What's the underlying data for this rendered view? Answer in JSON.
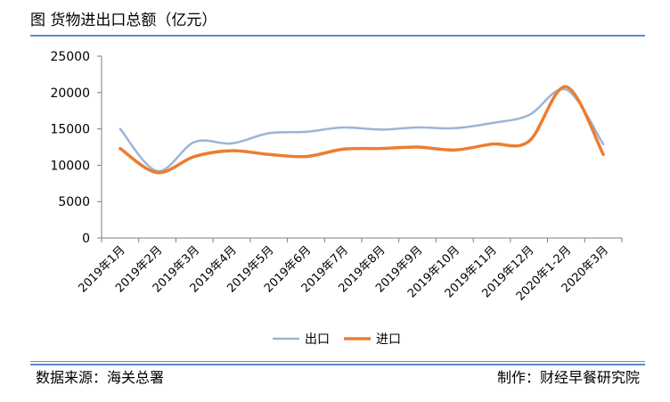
{
  "header": {
    "title": "图 货物进出口总额（亿元）"
  },
  "footer": {
    "source": "数据来源：海关总署",
    "producer": "制作：财经早餐研究院"
  },
  "colors": {
    "rule": "#5b8ec8",
    "export_line": "#9db4d8",
    "import_line": "#ed7d31",
    "axis": "#7f7f7f"
  },
  "chart_data": {
    "type": "line",
    "title": "货物进出口总额（亿元）",
    "xlabel": "",
    "ylabel": "",
    "categories": [
      "2019年1月",
      "2019年2月",
      "2019年3月",
      "2019年4月",
      "2019年5月",
      "2019年6月",
      "2019年7月",
      "2019年8月",
      "2019年9月",
      "2019年10月",
      "2019年11月",
      "2019年12月",
      "2020年1-2月",
      "2020年3月"
    ],
    "ylim": [
      0,
      25000
    ],
    "yticks": [
      0,
      5000,
      10000,
      15000,
      20000,
      25000
    ],
    "grid": false,
    "legend_position": "bottom",
    "smooth": true,
    "series": [
      {
        "name": "出口",
        "color": "#9db4d8",
        "values": [
          15000,
          9200,
          13200,
          13000,
          14400,
          14600,
          15200,
          14900,
          15200,
          15100,
          15800,
          16900,
          20400,
          12900
        ]
      },
      {
        "name": "进口",
        "color": "#ed7d31",
        "values": [
          12300,
          9000,
          11200,
          12000,
          11500,
          11200,
          12200,
          12300,
          12500,
          12100,
          12900,
          13300,
          20800,
          11500
        ]
      }
    ]
  }
}
